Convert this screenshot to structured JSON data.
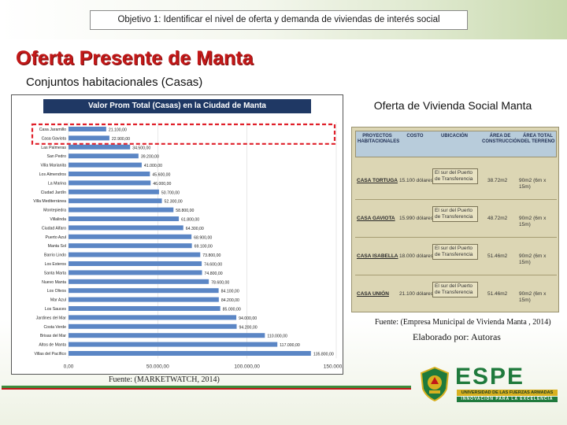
{
  "header": {
    "objective": "Objetivo 1: Identificar el nivel de oferta y demanda de viviendas de interés social"
  },
  "main_title": "Oferta Presente de Manta",
  "subtitle": "Conjuntos habitacionales (Casas)",
  "chart_data": {
    "type": "bar",
    "orientation": "horizontal",
    "title": "Valor Prom Total (Casas) en la Ciudad de Manta",
    "categories": [
      "Casa Jaramillo",
      "Casa Gaviota",
      "Las Palmeras",
      "San Pedro",
      "Villa Marianita",
      "Los Almendros",
      "La Marina",
      "Ciudad Jardín",
      "Villa Mediterránea",
      "Montepiedra",
      "Villalinda",
      "Ciudad Alfaro",
      "Puerto Azul",
      "Manta Sol",
      "Barrio Lindo",
      "Los Esteros",
      "Santa Marta",
      "Nuevo Manta",
      "Los Olivos",
      "Mar Azul",
      "Los Sauces",
      "Jardines del Mar",
      "Costa Verde",
      "Brisas del Mar",
      "Altos de Manta",
      "Villas del Pacífico"
    ],
    "values": [
      21100,
      22900,
      34500,
      39200,
      41000,
      45600,
      46000,
      50700,
      52300,
      58800,
      61800,
      64300,
      68900,
      69100,
      73800,
      74600,
      74800,
      78600,
      84100,
      84200,
      85000,
      94000,
      94200,
      110000,
      117000,
      135800
    ],
    "value_labels": [
      "21.100,00",
      "22.900,00",
      "34.500,00",
      "39.200,00",
      "41.000,00",
      "45.600,00",
      "46.000,00",
      "50.700,00",
      "52.300,00",
      "58.800,00",
      "61.800,00",
      "64.300,00",
      "68.900,00",
      "69.100,00",
      "73.800,00",
      "74.600,00",
      "74.800,00",
      "78.600,00",
      "84.100,00",
      "84.200,00",
      "85.000,00",
      "94.000,00",
      "94.200,00",
      "110.000,00",
      "117.000,00",
      "135.800,00"
    ],
    "highlighted": [
      0,
      1
    ],
    "xlim": [
      0,
      150000
    ],
    "ticks": [
      "0,00",
      "50.000,00",
      "100.000,00",
      "150.000,00"
    ],
    "colors": {
      "bar": "#5b86c5",
      "band": "#1f3864",
      "highlight": "#e0202a"
    }
  },
  "chart_source": "Fuente: (MARKETWATCH, 2014)",
  "offer": {
    "title": "Oferta de Vivienda Social Manta",
    "columns": [
      "PROYECTOS HABITACIONALES",
      "COSTO",
      "UBICACIÓN",
      "ÁREA DE CONSTRUCCIÓN",
      "ÁREA TOTAL DEL TERRENO"
    ],
    "rows": [
      {
        "project": "CASA TORTUGA",
        "cost": "15.100 dólares",
        "location": "El sur del Puerto de Transferencia",
        "area": "38.72m2",
        "terrain": "90m2 (6m x 15m)"
      },
      {
        "project": "CASA GAVIOTA",
        "cost": "15.990 dólares",
        "location": "El sur del Puerto de Transferencia",
        "area": "48.72m2",
        "terrain": "90m2 (6m x 15m)"
      },
      {
        "project": "CASA ISABELLA",
        "cost": "18.000 dólares",
        "location": "El sur del Puerto de Transferencia",
        "area": "51.46m2",
        "terrain": "90m2 (6m x 15m)"
      },
      {
        "project": "CASA UNIÓN",
        "cost": "21.100 dólares",
        "location": "El sur del Puerto de Transferencia",
        "area": "51.46m2",
        "terrain": "90m2 (6m x 15m)"
      }
    ],
    "source": "Fuente: (Empresa Municipal de Vivienda Manta , 2014)",
    "elaborado": "Elaborado por: Autoras"
  },
  "logo": {
    "name": "ESPE",
    "line1": "UNIVERSIDAD DE LAS FUERZAS ARMADAS",
    "line2": "INNOVACIÓN PARA LA EXCELENCIA",
    "colors": {
      "green": "#1f7a3c",
      "gold": "#d8b020"
    }
  }
}
